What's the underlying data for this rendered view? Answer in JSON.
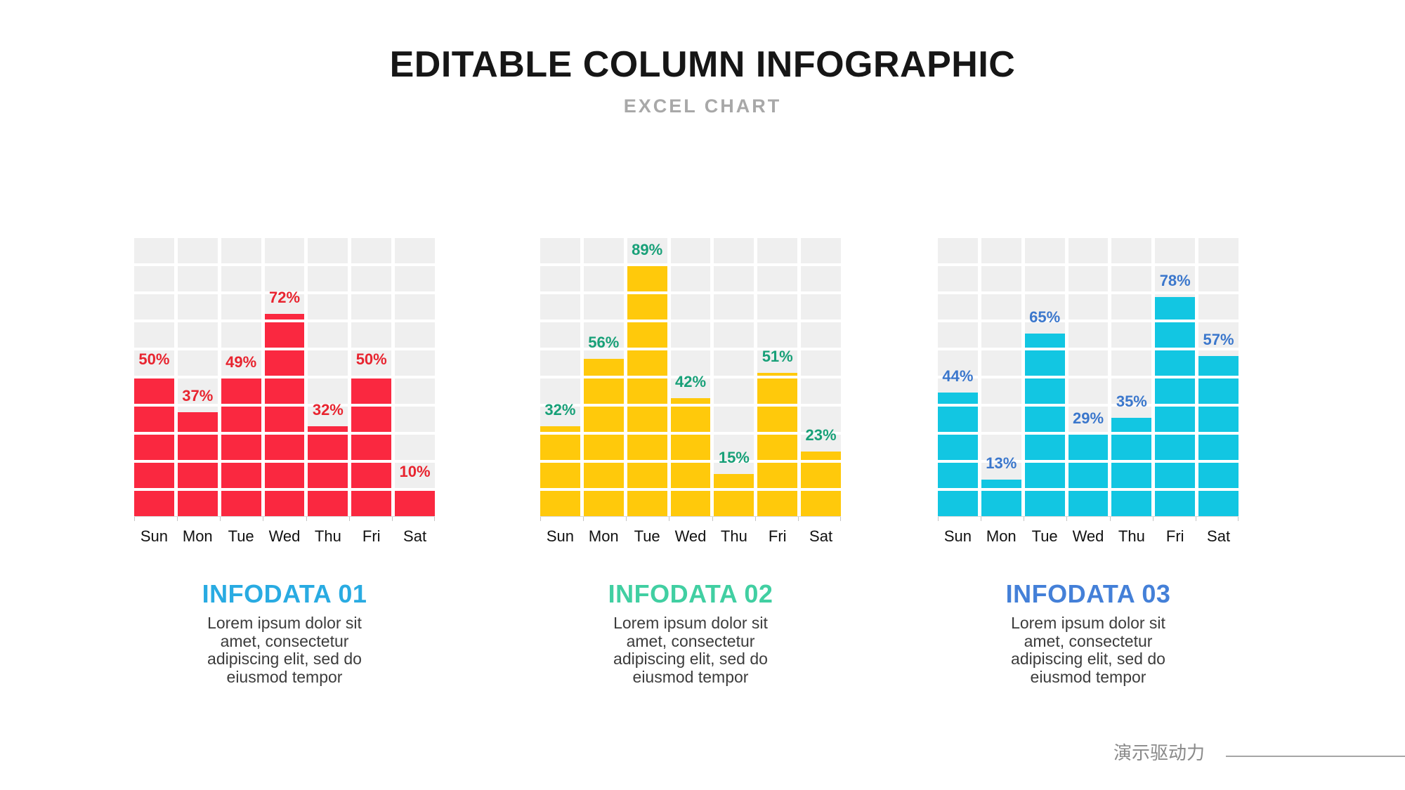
{
  "header": {
    "title": "EDITABLE COLUMN INFOGRAPHIC",
    "subtitle": "EXCEL CHART"
  },
  "chart_data": [
    {
      "type": "bar",
      "title": "INFODATA 01",
      "title_color": "#29ABE2",
      "bar_color": "#FA2840",
      "label_color": "#E8242F",
      "categories": [
        "Sun",
        "Mon",
        "Tue",
        "Wed",
        "Thu",
        "Fri",
        "Sat"
      ],
      "values": [
        50,
        37,
        49,
        72,
        32,
        50,
        10
      ],
      "unit": "%",
      "ylim": [
        0,
        100
      ],
      "grid": "cell-grid 10 rows x 7 cols",
      "legend": "none",
      "description": "Lorem ipsum dolor sit\namet, consectetur\nadipiscing elit, sed do\neiusmod tempor"
    },
    {
      "type": "bar",
      "title": "INFODATA 02",
      "title_color": "#41CFA2",
      "bar_color": "#FFC90B",
      "label_color": "#18A078",
      "categories": [
        "Sun",
        "Mon",
        "Tue",
        "Wed",
        "Thu",
        "Fri",
        "Sat"
      ],
      "values": [
        32,
        56,
        89,
        42,
        15,
        51,
        23
      ],
      "unit": "%",
      "ylim": [
        0,
        100
      ],
      "grid": "cell-grid 10 rows x 7 cols",
      "legend": "none",
      "description": "Lorem ipsum dolor sit\namet, consectetur\nadipiscing elit, sed do\neiusmod tempor"
    },
    {
      "type": "bar",
      "title": "INFODATA 03",
      "title_color": "#4480D8",
      "bar_color": "#12C6E2",
      "label_color": "#3B77CC",
      "categories": [
        "Sun",
        "Mon",
        "Tue",
        "Wed",
        "Thu",
        "Fri",
        "Sat"
      ],
      "values": [
        44,
        13,
        65,
        29,
        35,
        78,
        57
      ],
      "unit": "%",
      "ylim": [
        0,
        100
      ],
      "grid": "cell-grid 10 rows x 7 cols",
      "legend": "none",
      "description": "Lorem ipsum dolor sit\namet, consectetur\nadipiscing elit, sed do\neiusmod tempor"
    }
  ],
  "style": {
    "grid_cell_color": "#EFEFEF",
    "axis_color": "#D8D8D8"
  },
  "footer": {
    "brand": "演示驱动力"
  }
}
